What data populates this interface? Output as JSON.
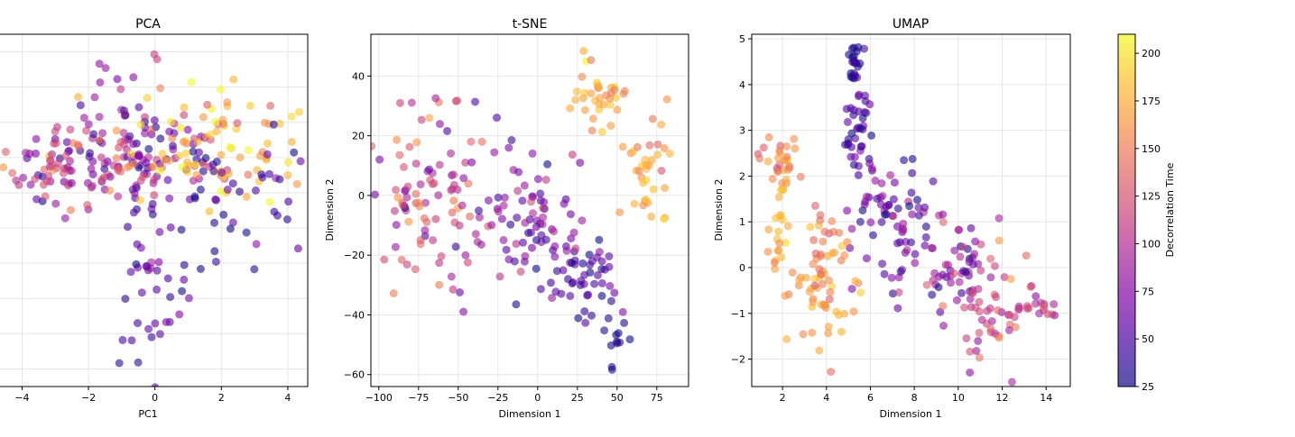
{
  "chart_data": [
    {
      "type": "scatter",
      "title": "PCA",
      "xlabel": "PC1",
      "ylabel": "",
      "xlim": [
        -4.8,
        4.6
      ],
      "ylim": [
        -6.5,
        3.5
      ],
      "xticks": [
        -4,
        -2,
        0,
        2,
        4
      ],
      "yticks": [],
      "grid": true,
      "colorVar": "Decorrelation Time",
      "clusters": [
        {
          "cx": -0.8,
          "cy": 0.0,
          "sx": 1.6,
          "sy": 0.8,
          "c": 75,
          "cs": 30,
          "n": 120
        },
        {
          "cx": -2.8,
          "cy": -0.4,
          "sx": 1.2,
          "sy": 0.5,
          "c": 120,
          "cs": 25,
          "n": 60
        },
        {
          "cx": 2.0,
          "cy": 0.4,
          "sx": 1.5,
          "sy": 0.9,
          "c": 170,
          "cs": 25,
          "n": 90
        },
        {
          "cx": 2.2,
          "cy": -1.3,
          "sx": 1.0,
          "sy": 0.8,
          "c": 45,
          "cs": 15,
          "n": 40
        },
        {
          "cx": 0.0,
          "cy": -3.5,
          "sx": 0.8,
          "sy": 1.1,
          "c": 55,
          "cs": 20,
          "n": 35
        },
        {
          "cx": -1.0,
          "cy": 2.2,
          "sx": 0.6,
          "sy": 0.7,
          "c": 90,
          "cs": 25,
          "n": 15
        },
        {
          "cx": -0.7,
          "cy": -5.5,
          "sx": 0.2,
          "sy": 0.3,
          "c": 40,
          "cs": 10,
          "n": 5
        }
      ]
    },
    {
      "type": "scatter",
      "title": "t-SNE",
      "xlabel": "Dimension 1",
      "ylabel": "Dimension 2",
      "xlim": [
        -105,
        95
      ],
      "ylim": [
        -64,
        54
      ],
      "xticks": [
        -100,
        -75,
        -50,
        -25,
        0,
        25,
        50,
        75
      ],
      "yticks": [
        -60,
        -40,
        -20,
        0,
        20,
        40
      ],
      "grid": true,
      "colorVar": "Decorrelation Time",
      "clusters": [
        {
          "cx": -65,
          "cy": 5,
          "sx": 18,
          "sy": 18,
          "c": 110,
          "cs": 25,
          "n": 80
        },
        {
          "cx": -5,
          "cy": -10,
          "sx": 20,
          "sy": 15,
          "c": 65,
          "cs": 25,
          "n": 80
        },
        {
          "cx": 30,
          "cy": -30,
          "sx": 15,
          "sy": 8,
          "c": 50,
          "cs": 15,
          "n": 45
        },
        {
          "cx": 50,
          "cy": -50,
          "sx": 5,
          "sy": 4,
          "c": 30,
          "cs": 5,
          "n": 12
        },
        {
          "cx": 40,
          "cy": 35,
          "sx": 8,
          "sy": 6,
          "c": 170,
          "cs": 15,
          "n": 35
        },
        {
          "cx": 70,
          "cy": 10,
          "sx": 10,
          "sy": 10,
          "c": 165,
          "cs": 15,
          "n": 35
        },
        {
          "cx": -88,
          "cy": -5,
          "sx": 10,
          "sy": 6,
          "c": 140,
          "cs": 20,
          "n": 15
        }
      ]
    },
    {
      "type": "scatter",
      "title": "UMAP",
      "xlabel": "Dimension 1",
      "ylabel": "Dimension 2",
      "xlim": [
        0.6,
        15.1
      ],
      "ylim": [
        -2.6,
        5.1
      ],
      "xticks": [
        2,
        4,
        6,
        8,
        10,
        12,
        14
      ],
      "yticks": [
        -2,
        -1,
        0,
        1,
        2,
        3,
        4,
        5
      ],
      "grid": true,
      "colorVar": "Decorrelation Time",
      "clusters": [
        {
          "cx": 5.3,
          "cy": 4.4,
          "sx": 0.2,
          "sy": 0.3,
          "c": 35,
          "cs": 10,
          "n": 20
        },
        {
          "cx": 5.5,
          "cy": 3.0,
          "sx": 0.4,
          "sy": 0.6,
          "c": 50,
          "cs": 15,
          "n": 40
        },
        {
          "cx": 7.2,
          "cy": 1.2,
          "sx": 1.0,
          "sy": 0.7,
          "c": 65,
          "cs": 20,
          "n": 60
        },
        {
          "cx": 9.5,
          "cy": 0.0,
          "sx": 1.2,
          "sy": 0.7,
          "c": 85,
          "cs": 25,
          "n": 60
        },
        {
          "cx": 11.5,
          "cy": -0.9,
          "sx": 1.2,
          "sy": 0.6,
          "c": 115,
          "cs": 20,
          "n": 50
        },
        {
          "cx": 13.5,
          "cy": -0.8,
          "sx": 0.6,
          "sy": 0.2,
          "c": 110,
          "cs": 15,
          "n": 15
        },
        {
          "cx": 2.0,
          "cy": 2.3,
          "sx": 0.5,
          "sy": 0.3,
          "c": 150,
          "cs": 15,
          "n": 30
        },
        {
          "cx": 1.8,
          "cy": 0.8,
          "sx": 0.3,
          "sy": 0.5,
          "c": 175,
          "cs": 15,
          "n": 20
        },
        {
          "cx": 3.7,
          "cy": -0.5,
          "sx": 0.7,
          "sy": 0.6,
          "c": 170,
          "cs": 15,
          "n": 50
        },
        {
          "cx": 3.8,
          "cy": 0.6,
          "sx": 0.4,
          "sy": 0.5,
          "c": 150,
          "cs": 15,
          "n": 20
        }
      ]
    }
  ],
  "colorbar": {
    "label": "Decorrelation Time",
    "range": [
      25,
      210
    ],
    "ticks": [
      25,
      50,
      75,
      100,
      125,
      150,
      175,
      200
    ],
    "colormap": "plasma"
  }
}
